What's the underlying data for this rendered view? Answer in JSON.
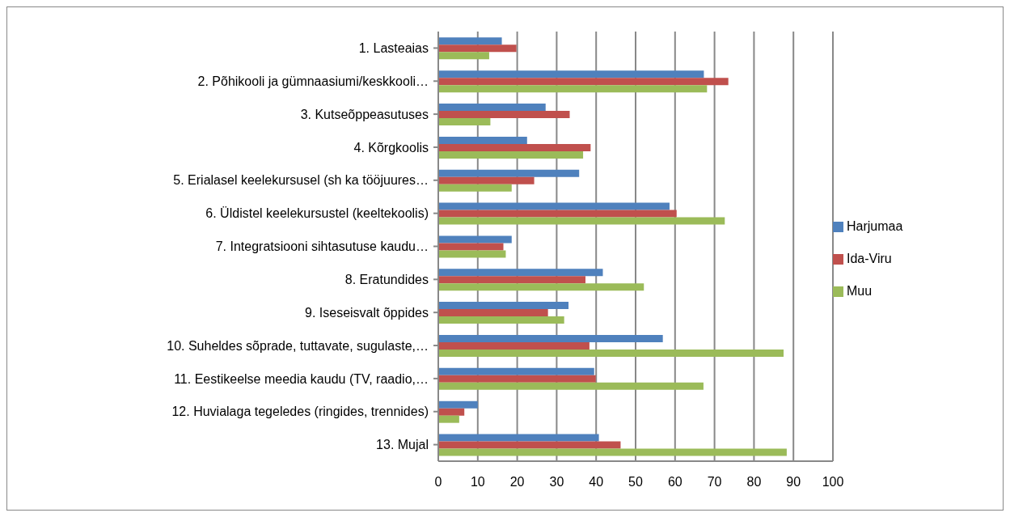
{
  "chart_data": {
    "type": "bar",
    "orientation": "horizontal",
    "categories": [
      "1. Lasteaias",
      "2. Põhikooli ja  gümnaasiumi/keskkooli…",
      "3. Kutseõppeasutuses",
      "4. Kõrgkoolis",
      "5. Erialasel keelekursusel (sh ka tööjuures…",
      "6. Üldistel keelekursustel (keeltekoolis)",
      "7. Integratsiooni sihtasutuse kaudu…",
      "8. Eratundides",
      "9. Iseseisvalt õppides",
      "10. Suheldes sõprade, tuttavate, sugulaste,…",
      "11. Eestikeelse meedia kaudu (TV, raadio,…",
      "12. Huvialaga tegeledes (ringides, trennides)",
      "13. Mujal"
    ],
    "series": [
      {
        "name": "Harjumaa",
        "color": "#4f81bd",
        "values": [
          16.1,
          67.3,
          27.2,
          22.5,
          35.7,
          58.6,
          18.6,
          41.7,
          33.0,
          56.9,
          39.5,
          10.0,
          40.7
        ]
      },
      {
        "name": "Ida-Viru",
        "color": "#c0504d",
        "values": [
          19.8,
          73.5,
          33.3,
          38.6,
          24.3,
          60.4,
          16.5,
          37.3,
          27.8,
          38.3,
          39.9,
          6.6,
          46.2
        ]
      },
      {
        "name": "Muu",
        "color": "#9bbb59",
        "values": [
          12.9,
          68.1,
          13.2,
          36.7,
          18.6,
          72.6,
          17.1,
          52.1,
          31.9,
          87.5,
          67.2,
          5.3,
          88.3
        ]
      }
    ],
    "xlim": [
      0,
      100
    ],
    "xticks": [
      0,
      10,
      20,
      30,
      40,
      50,
      60,
      70,
      80,
      90,
      100
    ],
    "grid": "x",
    "legend": "right"
  }
}
